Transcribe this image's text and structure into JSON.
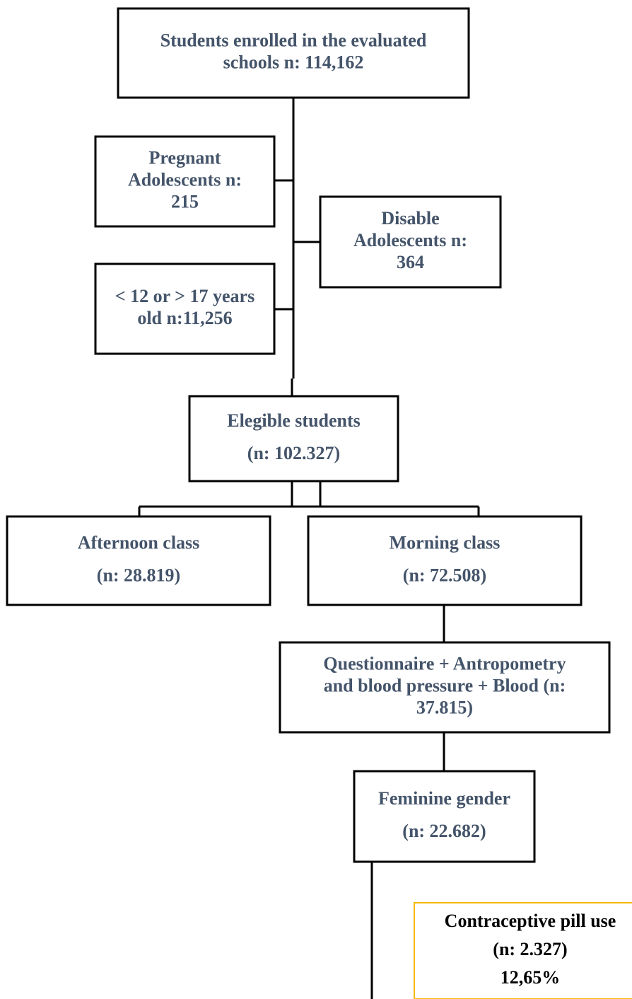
{
  "nodes": [
    {
      "lines": [
        "Students enrolled in the evaluated",
        "schools n: 114,162"
      ]
    },
    {
      "lines": [
        "Pregnant",
        "Adolescents n:",
        "215"
      ]
    },
    {
      "lines": [
        "Disable",
        "Adolescents n:",
        "364"
      ]
    },
    {
      "lines": [
        "< 12 or > 17 years",
        "old n:11,256"
      ]
    },
    {
      "lines": [
        "Elegible students",
        "(n: 102.327)"
      ]
    },
    {
      "lines": [
        "Afternoon class",
        "(n: 28.819)"
      ]
    },
    {
      "lines": [
        "Morning class",
        "(n: 72.508)"
      ]
    },
    {
      "lines": [
        "Questionnaire + Antropometry",
        "and blood pressure + Blood (n:",
        "37.815)"
      ]
    },
    {
      "lines": [
        "Feminine gender",
        "(n: 22.682)"
      ]
    },
    {
      "lines": [
        "Contraceptive pill use",
        "(n: 2.327)",
        "12,65%"
      ]
    }
  ]
}
